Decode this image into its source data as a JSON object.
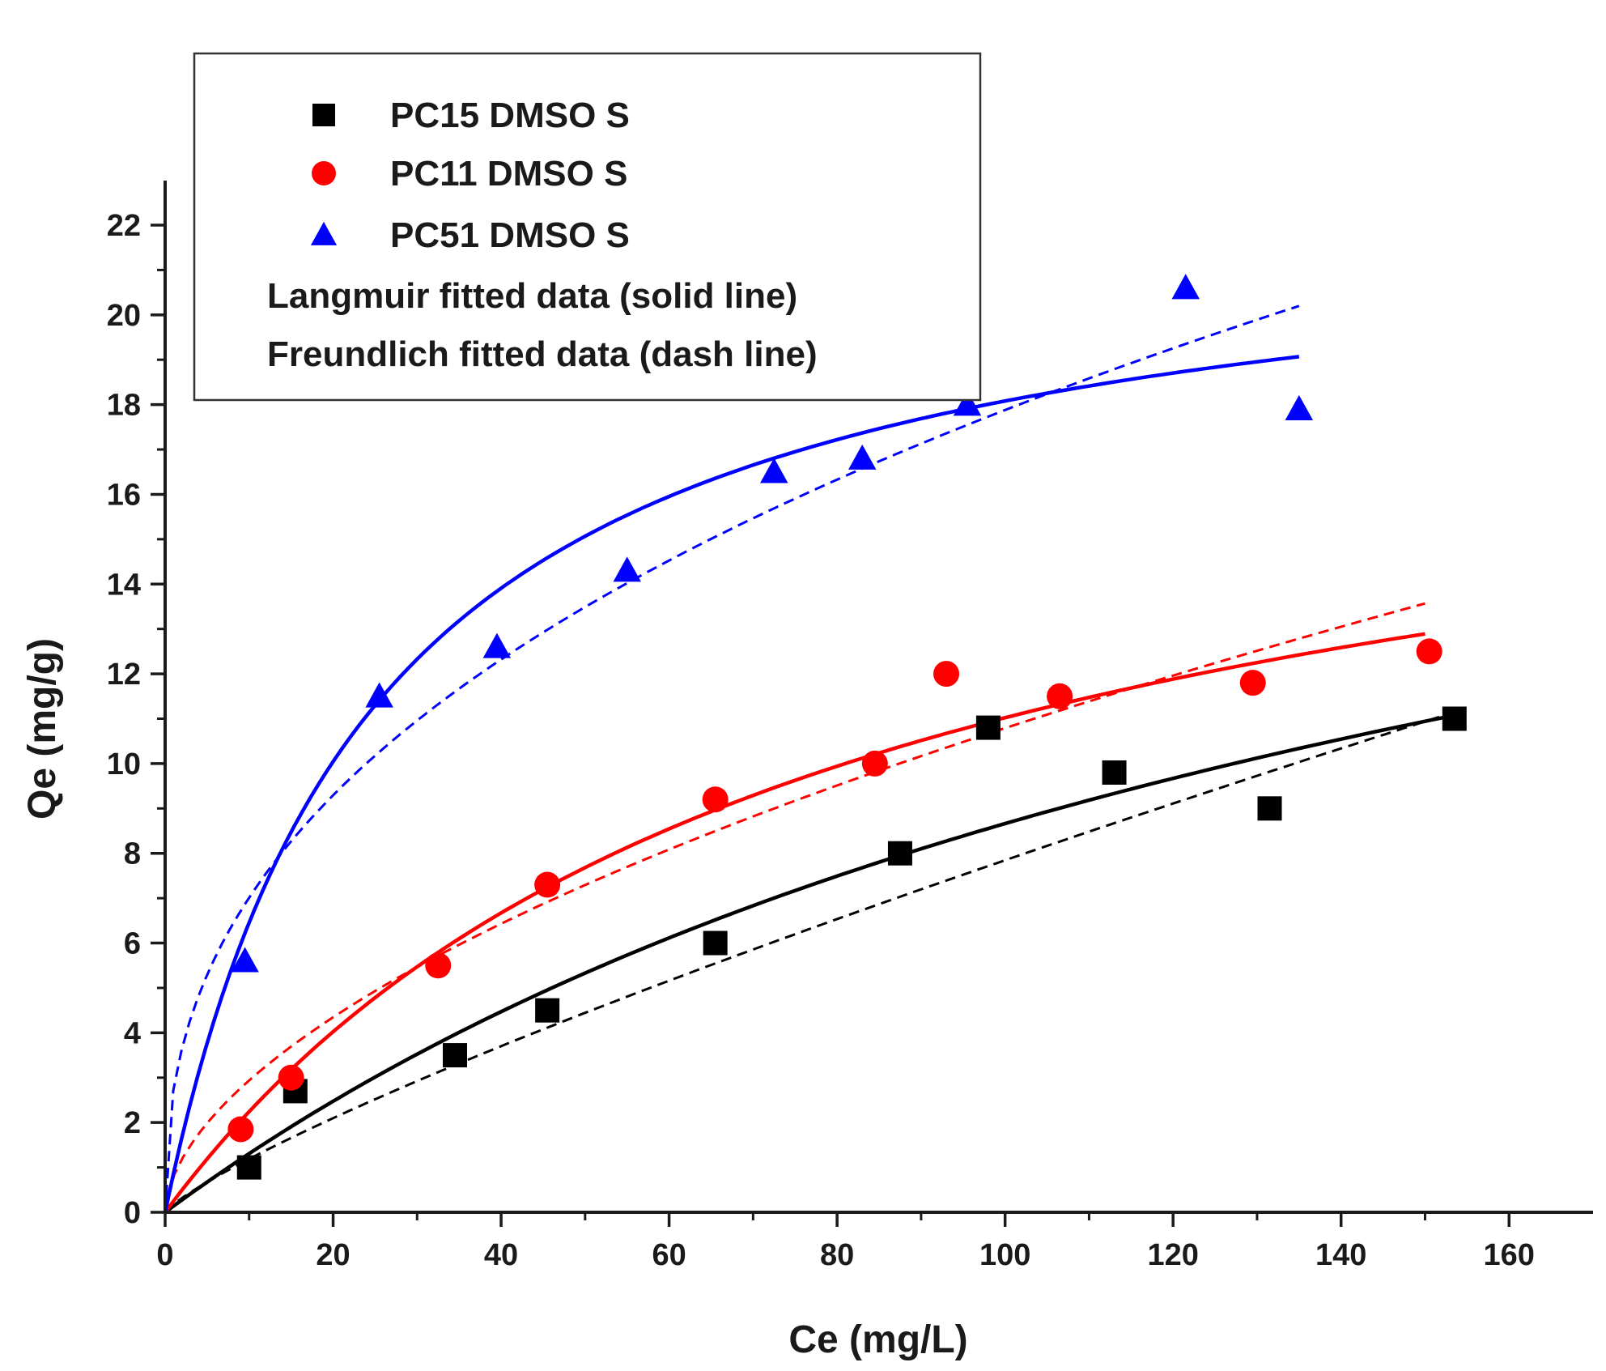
{
  "chart_data": {
    "type": "scatter",
    "xlabel": "Ce (mg/L)",
    "ylabel": "Qe (mg/g)",
    "xlim": [
      0,
      170
    ],
    "ylim": [
      0,
      23
    ],
    "xticks": [
      0,
      20,
      40,
      60,
      80,
      100,
      120,
      140,
      160
    ],
    "yticks": [
      0,
      2,
      4,
      6,
      8,
      10,
      12,
      14,
      16,
      18,
      20,
      22
    ],
    "grid": false,
    "legend_position": "top-left",
    "legend": [
      {
        "label": "PC15 DMSO S",
        "marker": "square",
        "color": "#000000"
      },
      {
        "label": "PC11 DMSO S",
        "marker": "circle",
        "color": "#ff0000"
      },
      {
        "label": "PC51 DMSO S",
        "marker": "triangle",
        "color": "#0000ff"
      },
      {
        "label": "Langmuir fitted data (solid line)"
      },
      {
        "label": "Freundlich fitted data (dash line)"
      }
    ],
    "series": [
      {
        "name": "PC15 DMSO S",
        "marker": "square",
        "color": "#000000",
        "points": [
          [
            10,
            1.0
          ],
          [
            15.5,
            2.7
          ],
          [
            34.5,
            3.5
          ],
          [
            45.5,
            4.5
          ],
          [
            65.5,
            6.0
          ],
          [
            87.5,
            8.0
          ],
          [
            98,
            10.8
          ],
          [
            113,
            9.8
          ],
          [
            131.5,
            9.0
          ],
          [
            153.5,
            11.0
          ]
        ],
        "langmuir_fit": {
          "qmax": 23.1,
          "KL": 0.006,
          "x_range": [
            0,
            154
          ]
        },
        "freundlich_fit": {
          "KF": 0.18,
          "n": 1.22,
          "x_range": [
            0,
            154
          ]
        }
      },
      {
        "name": "PC11 DMSO S",
        "marker": "circle",
        "color": "#ff0000",
        "points": [
          [
            9,
            1.85
          ],
          [
            15,
            3.0
          ],
          [
            32.5,
            5.5
          ],
          [
            45.5,
            7.3
          ],
          [
            65.5,
            9.2
          ],
          [
            84.5,
            10.0
          ],
          [
            93,
            12.0
          ],
          [
            106.5,
            11.5
          ],
          [
            129.5,
            11.8
          ],
          [
            150.5,
            12.5
          ]
        ],
        "langmuir_fit": {
          "qmax": 19.5,
          "KL": 0.013,
          "x_range": [
            0,
            150
          ]
        },
        "freundlich_fit": {
          "KF": 0.8,
          "n": 1.77,
          "x_range": [
            0,
            150
          ]
        }
      },
      {
        "name": "PC51 DMSO S",
        "marker": "triangle",
        "color": "#0000ff",
        "points": [
          [
            9.5,
            5.6
          ],
          [
            25.5,
            11.5
          ],
          [
            39.5,
            12.6
          ],
          [
            55,
            14.3
          ],
          [
            72.5,
            16.5
          ],
          [
            83,
            16.8
          ],
          [
            95.5,
            18.0
          ],
          [
            121.5,
            20.6
          ],
          [
            135,
            17.9
          ]
        ],
        "langmuir_fit": {
          "qmax": 22.6,
          "KL": 0.04,
          "x_range": [
            0,
            135
          ]
        },
        "freundlich_fit": {
          "KF": 2.75,
          "n": 2.46,
          "x_range": [
            0,
            135
          ]
        }
      }
    ]
  }
}
